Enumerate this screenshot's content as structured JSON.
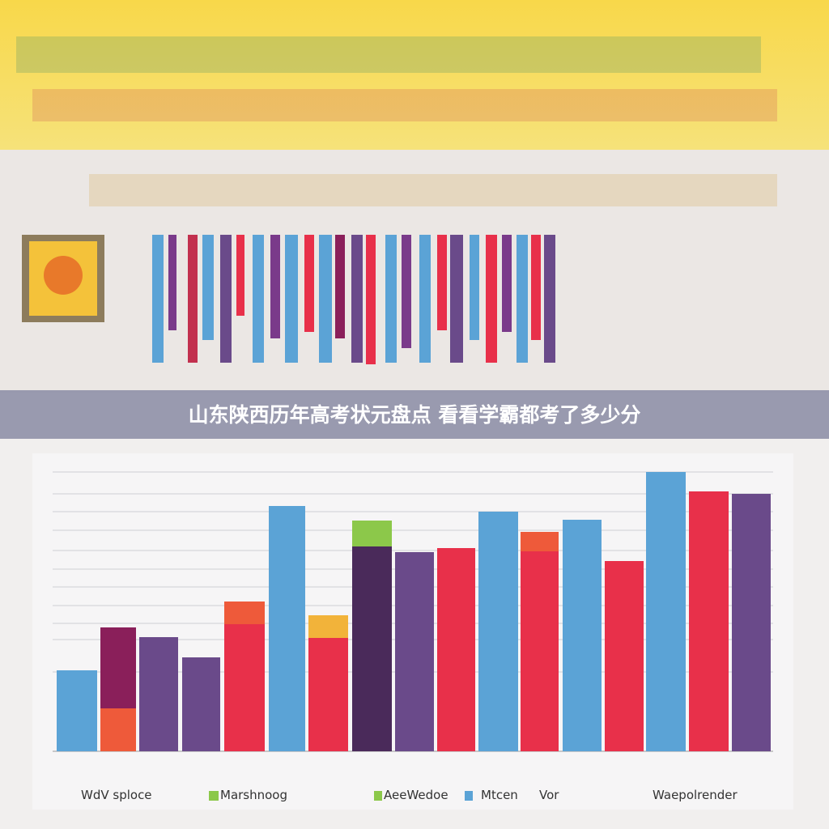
{
  "banner": {
    "title": "山东陕西历年高考状元盘点 看看学霸都考了多少分"
  },
  "legend": [
    "WdV sploce",
    "Marshnoog",
    "AeeWedoe",
    "Mtcen",
    "Vor",
    "Waepolrender"
  ]
}
